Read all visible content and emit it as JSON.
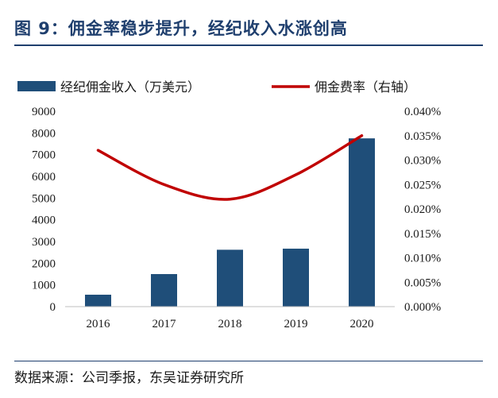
{
  "figure": {
    "title": "图 9：佣金率稳步提升，经纪收入水涨创高",
    "source": "数据来源：公司季报，东吴证券研究所"
  },
  "colors": {
    "bar": "#1f4e79",
    "line": "#c00000",
    "title": "#1f3f6e"
  },
  "chart_data": {
    "type": "bar",
    "categories": [
      "2016",
      "2017",
      "2018",
      "2019",
      "2020"
    ],
    "series": [
      {
        "name": "经纪佣金收入（万美元）",
        "type": "bar",
        "axis": "left",
        "values": [
          550,
          1500,
          2620,
          2670,
          7750
        ]
      },
      {
        "name": "佣金费率（右轴）",
        "type": "line",
        "axis": "right",
        "values": [
          0.032,
          0.025,
          0.022,
          0.027,
          0.035
        ]
      }
    ],
    "ylim_left": [
      0,
      9000
    ],
    "yticks_left": [
      "0",
      "1000",
      "2000",
      "3000",
      "4000",
      "5000",
      "6000",
      "7000",
      "8000",
      "9000"
    ],
    "ylim_right": [
      0,
      0.04
    ],
    "yticks_right": [
      "0.000%",
      "0.005%",
      "0.010%",
      "0.015%",
      "0.020%",
      "0.025%",
      "0.030%",
      "0.035%",
      "0.040%"
    ],
    "grid": false,
    "legend_position": "top"
  }
}
